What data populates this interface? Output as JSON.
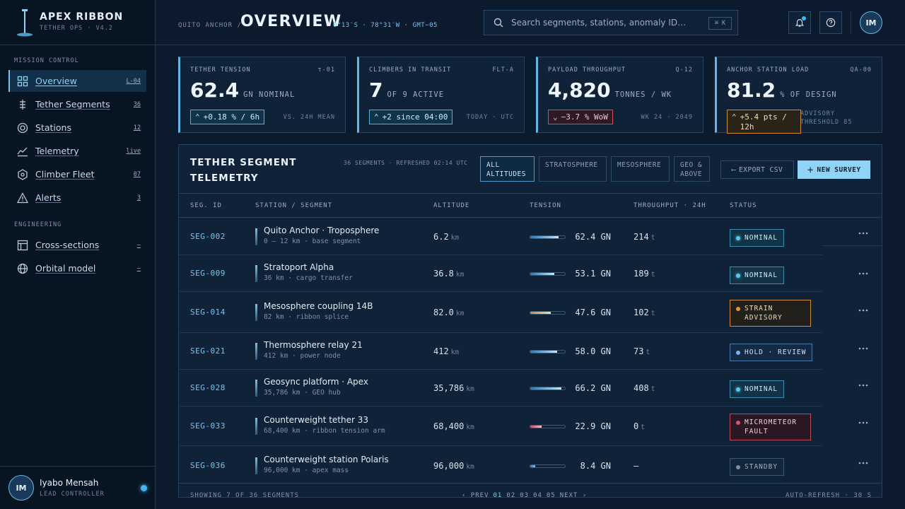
{
  "brand": {
    "title": "APEX RIBBON",
    "subtitle": "TETHER OPS · V4.2"
  },
  "sidebar": {
    "section_mission": "MISSION CONTROL",
    "section_engineering": "ENGINEERING",
    "items": [
      {
        "label": "Overview",
        "count": "L-04",
        "icon": "grid-icon",
        "active": true
      },
      {
        "label": "Tether Segments",
        "count": "36",
        "icon": "tether-icon"
      },
      {
        "label": "Stations",
        "count": "12",
        "icon": "target-icon"
      },
      {
        "label": "Telemetry",
        "count": "live",
        "icon": "trend-icon"
      },
      {
        "label": "Climber Fleet",
        "count": "07",
        "icon": "hexagon-icon"
      },
      {
        "label": "Alerts",
        "count": "3",
        "icon": "warning-icon"
      },
      {
        "label": "Cross-sections",
        "count": "—",
        "icon": "layout-icon"
      },
      {
        "label": "Orbital model",
        "count": "—",
        "icon": "globe-icon"
      }
    ]
  },
  "user": {
    "initials": "IM",
    "name": "Iyabo Mensah",
    "role": "LEAD CONTROLLER"
  },
  "header": {
    "breadcrumb": "QUITO ANCHOR /",
    "title": "OVERVIEW",
    "coords": "0°13′S · 78°31′W · GMT−05",
    "search_placeholder": "Search segments, stations, anomaly ID…",
    "search_shortcut": "⌘ K",
    "avatar_initials": "IM"
  },
  "kpis": [
    {
      "label": "TETHER TENSION",
      "code": "τ-01",
      "value": "62.4",
      "unit": "GN NOMINAL",
      "delta": "+0.18 % / 6h",
      "delta_dir": "up",
      "note": "VS. 24H MEAN"
    },
    {
      "label": "CLIMBERS IN TRANSIT",
      "code": "FLT-A",
      "value": "7",
      "unit": "OF 9 ACTIVE",
      "delta": "+2 since 04:00",
      "delta_dir": "up",
      "note": "TODAY · UTC"
    },
    {
      "label": "PAYLOAD THROUGHPUT",
      "code": "Q-12",
      "value": "4,820",
      "unit": "TONNES / WK",
      "delta": "−3.7 % WoW",
      "delta_dir": "down",
      "note": "WK 24 · 2049"
    },
    {
      "label": "ANCHOR STATION LOAD",
      "code": "QA-00",
      "value": "81.2",
      "unit": "% OF DESIGN",
      "delta": "+5.4 pts / 12h",
      "delta_dir": "warn",
      "note": "ADVISORY THRESHOLD 85"
    }
  ],
  "table": {
    "title": "TETHER SEGMENT TELEMETRY",
    "meta": "36 SEGMENTS · REFRESHED 02:14 UTC",
    "filters": [
      "ALL ALTITUDES",
      "STRATOSPHERE",
      "MESOSPHERE",
      "GEO & ABOVE"
    ],
    "export_label": "EXPORT CSV",
    "new_label": "NEW SURVEY",
    "columns": [
      "SEG. ID",
      "STATION / SEGMENT",
      "ALTITUDE",
      "TENSION",
      "THROUGHPUT · 24H",
      "STATUS"
    ],
    "rows": [
      {
        "id": "SEG-002",
        "name": "Quito Anchor · Troposphere",
        "sub": "0 – 12 km · base segment",
        "alt": "6.2",
        "alt_unit": "km",
        "tension": "62.4 GN",
        "tension_frac": 0.82,
        "tension_tone": "normal",
        "thr": "214",
        "thr_unit": "t",
        "status": "NOMINAL",
        "status_tone": "nominal"
      },
      {
        "id": "SEG-009",
        "name": "Stratoport Alpha",
        "sub": "36 km · cargo transfer",
        "alt": "36.8",
        "alt_unit": "km",
        "tension": "53.1 GN",
        "tension_frac": 0.7,
        "tension_tone": "normal",
        "thr": "189",
        "thr_unit": "t",
        "status": "NOMINAL",
        "status_tone": "nominal"
      },
      {
        "id": "SEG-014",
        "name": "Mesosphere coupling 14B",
        "sub": "82 km · ribbon splice",
        "alt": "82.0",
        "alt_unit": "km",
        "tension": "47.6 GN",
        "tension_frac": 0.6,
        "tension_tone": "warn",
        "thr": "102",
        "thr_unit": "t",
        "status": "STRAIN ADVISORY",
        "status_tone": "advisory"
      },
      {
        "id": "SEG-021",
        "name": "Thermosphere relay 21",
        "sub": "412 km · power node",
        "alt": "412",
        "alt_unit": "km",
        "tension": "58.0 GN",
        "tension_frac": 0.78,
        "tension_tone": "normal",
        "thr": "73",
        "thr_unit": "t",
        "status": "HOLD · REVIEW",
        "status_tone": "hold"
      },
      {
        "id": "SEG-028",
        "name": "Geosync platform · Apex",
        "sub": "35,786 km · GEO hub",
        "alt": "35,786",
        "alt_unit": "km",
        "tension": "66.2 GN",
        "tension_frac": 0.9,
        "tension_tone": "normal",
        "thr": "408",
        "thr_unit": "t",
        "status": "NOMINAL",
        "status_tone": "nominal"
      },
      {
        "id": "SEG-033",
        "name": "Counterweight tether 33",
        "sub": "68,400 km · ribbon tension arm",
        "alt": "68,400",
        "alt_unit": "km",
        "tension": "22.9 GN",
        "tension_frac": 0.32,
        "tension_tone": "fault",
        "thr": "0",
        "thr_unit": "t",
        "status": "MICROMETEOR FAULT",
        "status_tone": "fault"
      },
      {
        "id": "SEG-036",
        "name": "Counterweight station Polaris",
        "sub": "96,000 km · apex mass",
        "alt": "96,000",
        "alt_unit": "km",
        "tension": "8.4 GN",
        "tension_frac": 0.15,
        "tension_tone": "low",
        "thr": "—",
        "thr_unit": "",
        "status": "STANDBY",
        "status_tone": "standby"
      }
    ],
    "footer": {
      "showing": "SHOWING 7 OF 36 SEGMENTS",
      "prev": "‹ PREV",
      "pages": [
        "01",
        "02",
        "03",
        "04",
        "05"
      ],
      "next": "NEXT ›",
      "refresh": "AUTO-REFRESH · 30 S"
    }
  },
  "colors": {
    "accent": "#7cc3ea",
    "primary_button": "#8fd3f6",
    "advisory": "#d08a3a",
    "fault": "#c04a5a"
  }
}
